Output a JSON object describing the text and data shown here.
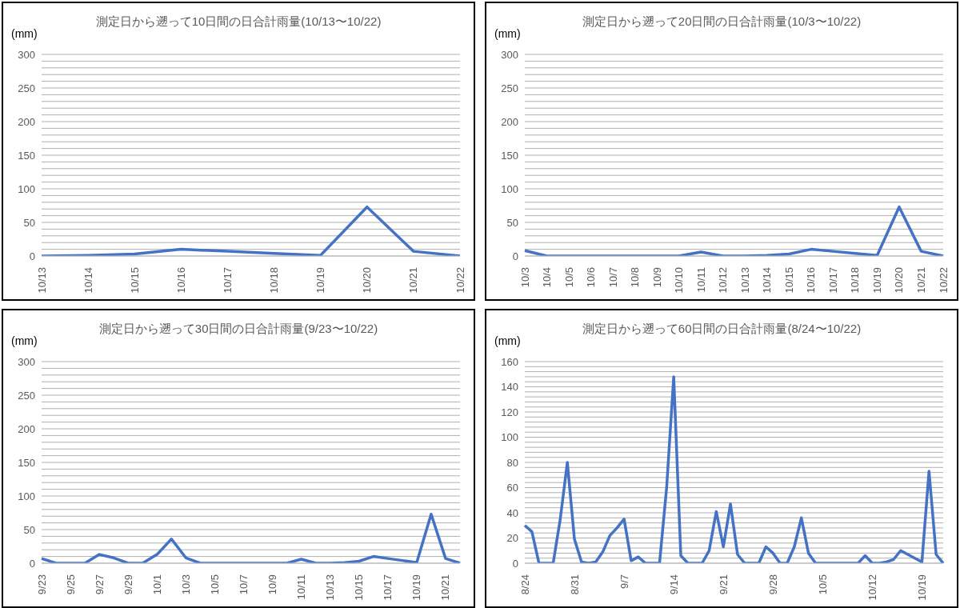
{
  "chart_data": [
    {
      "type": "line",
      "title": "測定日から遡って10日間の日合計雨量(10/13〜10/22)",
      "ylabel": "(mm)",
      "categories": [
        "10/13",
        "10/14",
        "10/15",
        "10/16",
        "10/17",
        "10/18",
        "10/19",
        "10/20",
        "10/21",
        "10/22"
      ],
      "series": [
        {
          "color": "#4472c4",
          "values": [
            0,
            1,
            3,
            10,
            7,
            4,
            1,
            73,
            7,
            0
          ]
        }
      ],
      "ylim": [
        0,
        300
      ],
      "yticks": [
        0,
        {
          "value": 10,
          "label": null
        },
        {
          "value": 20,
          "label": null
        },
        {
          "value": 30,
          "label": null
        },
        {
          "value": 40,
          "label": null
        },
        50,
        {
          "value": 60,
          "label": null
        },
        {
          "value": 70,
          "label": null
        },
        {
          "value": 80,
          "label": null
        },
        {
          "value": 90,
          "label": null
        },
        100,
        {
          "value": 110,
          "label": null
        },
        {
          "value": 120,
          "label": null
        },
        {
          "value": 130,
          "label": null
        },
        {
          "value": 140,
          "label": null
        },
        150,
        {
          "value": 160,
          "label": null
        },
        {
          "value": 170,
          "label": null
        },
        {
          "value": 180,
          "label": null
        },
        {
          "value": 190,
          "label": null
        },
        200,
        {
          "value": 210,
          "label": null
        },
        {
          "value": 220,
          "label": null
        },
        {
          "value": 230,
          "label": null
        },
        {
          "value": 240,
          "label": null
        },
        250,
        {
          "value": 260,
          "label": null
        },
        {
          "value": 270,
          "label": null
        },
        {
          "value": 280,
          "label": null
        },
        {
          "value": 290,
          "label": null
        },
        300
      ],
      "grid": "y"
    },
    {
      "type": "line",
      "title": "測定日から遡って20日間の日合計雨量(10/3〜10/22)",
      "ylabel": "(mm)",
      "categories": [
        "10/3",
        "10/4",
        "10/5",
        "10/6",
        "10/7",
        "10/8",
        "10/9",
        "10/10",
        "10/11",
        "10/12",
        "10/13",
        "10/14",
        "10/15",
        "10/16",
        "10/17",
        "10/18",
        "10/19",
        "10/20",
        "10/21",
        "10/22"
      ],
      "series": [
        {
          "color": "#4472c4",
          "values": [
            8,
            0,
            0,
            0,
            0,
            0,
            0,
            0,
            6,
            0,
            0,
            1,
            3,
            10,
            7,
            4,
            1,
            73,
            7,
            0
          ]
        }
      ],
      "ylim": [
        0,
        300
      ],
      "yticks": [
        0,
        {
          "value": 10,
          "label": null
        },
        {
          "value": 20,
          "label": null
        },
        {
          "value": 30,
          "label": null
        },
        {
          "value": 40,
          "label": null
        },
        50,
        {
          "value": 60,
          "label": null
        },
        {
          "value": 70,
          "label": null
        },
        {
          "value": 80,
          "label": null
        },
        {
          "value": 90,
          "label": null
        },
        100,
        {
          "value": 110,
          "label": null
        },
        {
          "value": 120,
          "label": null
        },
        {
          "value": 130,
          "label": null
        },
        {
          "value": 140,
          "label": null
        },
        150,
        {
          "value": 160,
          "label": null
        },
        {
          "value": 170,
          "label": null
        },
        {
          "value": 180,
          "label": null
        },
        {
          "value": 190,
          "label": null
        },
        200,
        {
          "value": 210,
          "label": null
        },
        {
          "value": 220,
          "label": null
        },
        {
          "value": 230,
          "label": null
        },
        {
          "value": 240,
          "label": null
        },
        250,
        {
          "value": 260,
          "label": null
        },
        {
          "value": 270,
          "label": null
        },
        {
          "value": 280,
          "label": null
        },
        {
          "value": 290,
          "label": null
        },
        300
      ],
      "grid": "y"
    },
    {
      "type": "line",
      "title": "測定日から遡って30日間の日合計雨量(9/23〜10/22)",
      "ylabel": "(mm)",
      "categories": [
        "9/23",
        null,
        "9/25",
        null,
        "9/27",
        null,
        "9/29",
        null,
        "10/1",
        null,
        "10/3",
        null,
        "10/5",
        null,
        "10/7",
        null,
        "10/9",
        null,
        "10/11",
        null,
        "10/13",
        null,
        "10/15",
        null,
        "10/17",
        null,
        "10/19",
        null,
        "10/21",
        null
      ],
      "series": [
        {
          "color": "#4472c4",
          "values": [
            7,
            0,
            0,
            0,
            13,
            8,
            0,
            0,
            13,
            36,
            8,
            0,
            0,
            0,
            0,
            0,
            0,
            0,
            6,
            0,
            0,
            1,
            3,
            10,
            7,
            4,
            1,
            73,
            7,
            0
          ]
        }
      ],
      "ylim": [
        0,
        300
      ],
      "yticks": [
        0,
        {
          "value": 10,
          "label": null
        },
        {
          "value": 20,
          "label": null
        },
        {
          "value": 30,
          "label": null
        },
        {
          "value": 40,
          "label": null
        },
        50,
        {
          "value": 60,
          "label": null
        },
        {
          "value": 70,
          "label": null
        },
        {
          "value": 80,
          "label": null
        },
        {
          "value": 90,
          "label": null
        },
        100,
        {
          "value": 110,
          "label": null
        },
        {
          "value": 120,
          "label": null
        },
        {
          "value": 130,
          "label": null
        },
        {
          "value": 140,
          "label": null
        },
        150,
        {
          "value": 160,
          "label": null
        },
        {
          "value": 170,
          "label": null
        },
        {
          "value": 180,
          "label": null
        },
        {
          "value": 190,
          "label": null
        },
        200,
        {
          "value": 210,
          "label": null
        },
        {
          "value": 220,
          "label": null
        },
        {
          "value": 230,
          "label": null
        },
        {
          "value": 240,
          "label": null
        },
        250,
        {
          "value": 260,
          "label": null
        },
        {
          "value": 270,
          "label": null
        },
        {
          "value": 280,
          "label": null
        },
        {
          "value": 290,
          "label": null
        },
        300
      ],
      "grid": "y"
    },
    {
      "type": "line",
      "title": "測定日から遡って60日間の日合計雨量(8/24〜10/22)",
      "ylabel": "(mm)",
      "categories": [
        "8/24",
        null,
        null,
        null,
        null,
        null,
        null,
        "8/31",
        null,
        null,
        null,
        null,
        null,
        null,
        "9/7",
        null,
        null,
        null,
        null,
        null,
        null,
        "9/14",
        null,
        null,
        null,
        null,
        null,
        null,
        "9/21",
        null,
        null,
        null,
        null,
        null,
        null,
        "9/28",
        null,
        null,
        null,
        null,
        null,
        null,
        "10/5",
        null,
        null,
        null,
        null,
        null,
        null,
        "10/12",
        null,
        null,
        null,
        null,
        null,
        null,
        "10/19",
        null,
        null,
        null
      ],
      "series": [
        {
          "color": "#4472c4",
          "values": [
            30,
            25,
            0,
            0,
            0,
            35,
            80,
            19,
            1,
            0,
            1,
            9,
            22,
            28,
            35,
            2,
            5,
            0,
            0,
            0,
            60,
            148,
            6,
            0,
            0,
            0,
            10,
            41,
            13,
            47,
            7,
            0,
            0,
            0,
            13,
            8,
            0,
            0,
            13,
            36,
            8,
            0,
            0,
            0,
            0,
            0,
            0,
            0,
            6,
            0,
            0,
            1,
            3,
            10,
            7,
            4,
            1,
            73,
            7,
            0
          ]
        }
      ],
      "ylim": [
        0,
        160
      ],
      "yticks": [
        0,
        {
          "value": 4,
          "label": null
        },
        {
          "value": 8,
          "label": null
        },
        {
          "value": 12,
          "label": null
        },
        {
          "value": 16,
          "label": null
        },
        20,
        {
          "value": 24,
          "label": null
        },
        {
          "value": 28,
          "label": null
        },
        {
          "value": 32,
          "label": null
        },
        {
          "value": 36,
          "label": null
        },
        40,
        {
          "value": 44,
          "label": null
        },
        {
          "value": 48,
          "label": null
        },
        {
          "value": 52,
          "label": null
        },
        {
          "value": 56,
          "label": null
        },
        60,
        {
          "value": 64,
          "label": null
        },
        {
          "value": 68,
          "label": null
        },
        {
          "value": 72,
          "label": null
        },
        {
          "value": 76,
          "label": null
        },
        80,
        {
          "value": 84,
          "label": null
        },
        {
          "value": 88,
          "label": null
        },
        {
          "value": 92,
          "label": null
        },
        {
          "value": 96,
          "label": null
        },
        100,
        {
          "value": 104,
          "label": null
        },
        {
          "value": 108,
          "label": null
        },
        {
          "value": 112,
          "label": null
        },
        {
          "value": 116,
          "label": null
        },
        120,
        {
          "value": 124,
          "label": null
        },
        {
          "value": 128,
          "label": null
        },
        {
          "value": 132,
          "label": null
        },
        {
          "value": 136,
          "label": null
        },
        140,
        {
          "value": 144,
          "label": null
        },
        {
          "value": 148,
          "label": null
        },
        {
          "value": 152,
          "label": null
        },
        {
          "value": 156,
          "label": null
        },
        160
      ],
      "grid": "y"
    }
  ]
}
